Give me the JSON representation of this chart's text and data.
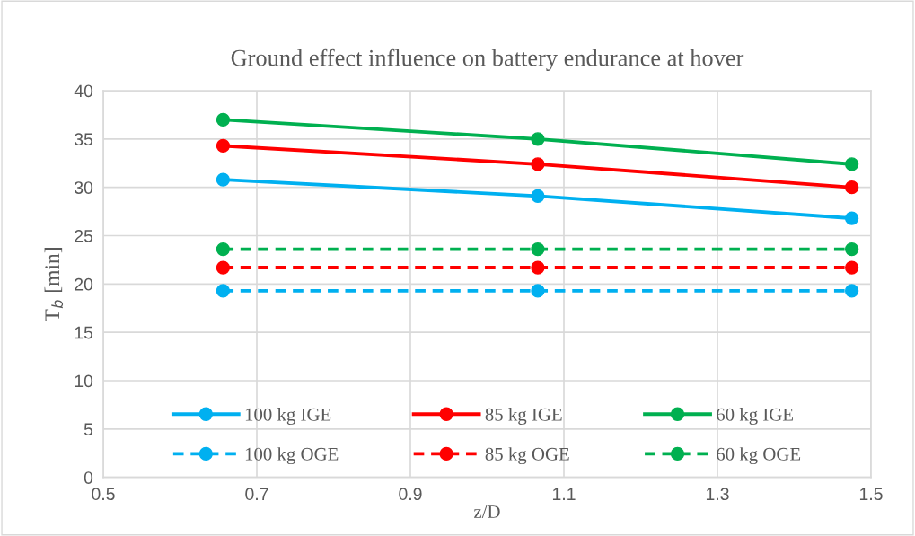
{
  "chart_data": {
    "type": "line",
    "title": "Ground effect influence on battery endurance at hover",
    "xlabel": "z/D",
    "ylabel": "T$_{b}$ [min]",
    "x": [
      0.656,
      1.066,
      1.475
    ],
    "series": [
      {
        "name": "100 kg IGE",
        "color": "#00b0f0",
        "values": [
          30.8,
          29.1,
          26.8
        ],
        "line_style": "solid"
      },
      {
        "name": "85 kg IGE",
        "color": "#ff0000",
        "values": [
          34.3,
          32.4,
          30.0
        ],
        "line_style": "solid"
      },
      {
        "name": "60 kg IGE",
        "color": "#00b050",
        "values": [
          37.0,
          35.0,
          32.4
        ],
        "line_style": "solid"
      },
      {
        "name": "100 kg OGE",
        "color": "#00b0f0",
        "values": [
          19.3,
          19.3,
          19.3
        ],
        "line_style": "dashed"
      },
      {
        "name": "85 kg OGE",
        "color": "#ff0000",
        "values": [
          21.7,
          21.7,
          21.7
        ],
        "line_style": "dashed"
      },
      {
        "name": "60 kg OGE",
        "color": "#00b050",
        "values": [
          23.6,
          23.6,
          23.6
        ],
        "line_style": "dashed"
      }
    ],
    "xlim": [
      0.5,
      1.5
    ],
    "xticks": [
      0.5,
      0.7,
      0.9,
      1.1,
      1.3,
      1.5
    ],
    "ylim": [
      0,
      40
    ],
    "yticks": [
      0,
      5,
      10,
      15,
      20,
      25,
      30,
      35,
      40
    ],
    "grid": true,
    "legend": "bottom",
    "marker": "circle"
  }
}
